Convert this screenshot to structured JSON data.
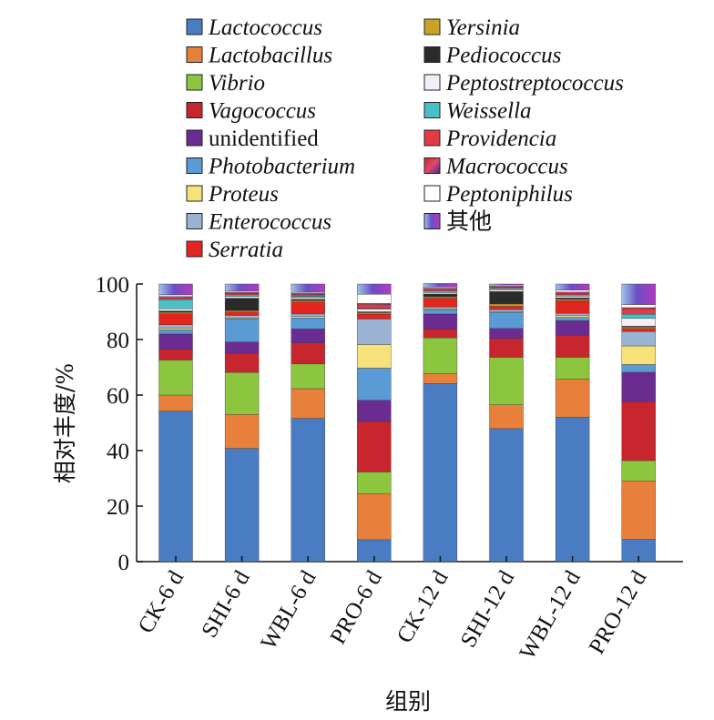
{
  "chart_data": {
    "type": "bar",
    "stacked": true,
    "xlabel": "组别",
    "ylabel": "相对丰度/%",
    "ylim": [
      0,
      100
    ],
    "yticks": [
      0,
      20,
      40,
      60,
      80,
      100
    ],
    "categories": [
      "CK-6 d",
      "SHI-6 d",
      "WBL-6 d",
      "PRO-6 d",
      "CK-12 d",
      "SHI-12 d",
      "WBL-12 d",
      "PRO-12 d"
    ],
    "series": [
      {
        "name": "Lactococcus",
        "color": "#4a7cc4",
        "values": [
          54.2,
          40.8,
          51.6,
          7.9,
          64.2,
          47.9,
          52.0,
          8.1
        ]
      },
      {
        "name": "Lactobacillus",
        "color": "#e8803c",
        "values": [
          5.8,
          12.2,
          10.7,
          16.6,
          3.6,
          8.6,
          13.7,
          21.0
        ]
      },
      {
        "name": "Vibrio",
        "color": "#8cc63f",
        "values": [
          12.6,
          15.1,
          8.9,
          7.8,
          12.8,
          17.1,
          7.9,
          7.3
        ]
      },
      {
        "name": "Vagococcus",
        "color": "#c8262e",
        "values": [
          3.9,
          6.9,
          7.6,
          18.2,
          3.2,
          6.8,
          8.0,
          21.2
        ]
      },
      {
        "name": "unidentified",
        "color": "#6b2c91",
        "values": [
          5.5,
          4.1,
          5.0,
          7.6,
          5.4,
          3.6,
          5.2,
          10.6
        ]
      },
      {
        "name": "Photobacterium",
        "color": "#5b9bd5",
        "values": [
          1.5,
          8.4,
          4.0,
          11.6,
          1.5,
          5.8,
          1.2,
          2.8
        ]
      },
      {
        "name": "Proteus",
        "color": "#f6e27a",
        "values": [
          0.6,
          0.3,
          0.5,
          8.5,
          0.4,
          0.3,
          0.6,
          6.7
        ]
      },
      {
        "name": "Enterococcus",
        "color": "#9ab3d2",
        "values": [
          1.2,
          0.9,
          0.9,
          9.2,
          0.6,
          0.7,
          0.8,
          5.2
        ]
      },
      {
        "name": "Serratia",
        "color": "#e0261f",
        "values": [
          4.0,
          1.2,
          4.3,
          1.8,
          3.2,
          1.2,
          4.6,
          1.1
        ]
      },
      {
        "name": "Yersinia",
        "color": "#c9a227",
        "values": [
          0.5,
          0.5,
          0.5,
          0.5,
          0.5,
          0.8,
          0.5,
          0.5
        ]
      },
      {
        "name": "Pediococcus",
        "color": "#2b2b2b",
        "values": [
          0.5,
          4.5,
          0.5,
          0.3,
          1.0,
          4.5,
          0.5,
          0.3
        ]
      },
      {
        "name": "Peptostreptococcus",
        "color": "#f5eef8",
        "values": [
          0.8,
          0.6,
          0.6,
          0.9,
          0.5,
          0.6,
          0.6,
          2.8
        ]
      },
      {
        "name": "Weissella",
        "color": "#4bbfc6",
        "values": [
          3.3,
          0.6,
          0.5,
          0.3,
          0.6,
          0.5,
          0.5,
          1.5
        ]
      },
      {
        "name": "Providencia",
        "color": "#e33b45",
        "values": [
          0.6,
          0.5,
          0.6,
          1.3,
          0.6,
          0.4,
          0.5,
          2.0
        ]
      },
      {
        "name": "Macrococcus",
        "color": "#8a2a5a",
        "values": [
          0.5,
          0.4,
          0.4,
          0.5,
          0.4,
          0.4,
          0.5,
          0.4
        ]
      },
      {
        "name": "Peptoniphilus",
        "color": "#ffffff",
        "values": [
          0.6,
          0.4,
          0.4,
          3.3,
          0.4,
          0.4,
          0.7,
          1.1
        ]
      },
      {
        "name": "其他",
        "color": "#7b4fc4",
        "values": [
          3.9,
          2.6,
          3.0,
          3.7,
          1.3,
          0.4,
          2.2,
          7.4
        ]
      }
    ],
    "legend_placement": "top",
    "grid": false
  }
}
